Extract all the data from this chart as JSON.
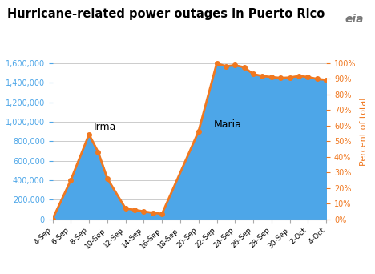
{
  "title": "Hurricane-related power outages in Puerto Rico",
  "ylabel_right": "Percent of total",
  "fill_color": "#4da6e8",
  "line_color": "#f07820",
  "title_color": "#000000",
  "left_label_color": "#4da6e8",
  "right_label_color": "#f07820",
  "background_color": "#ffffff",
  "x_labels": [
    "4-Sep",
    "6-Sep",
    "8-Sep",
    "10-Sep",
    "12-Sep",
    "14-Sep",
    "16-Sep",
    "18-Sep",
    "20-Sep",
    "22-Sep",
    "24-Sep",
    "26-Sep",
    "28-Sep",
    "30-Sep",
    "2-Oct",
    "4-Oct"
  ],
  "x_tick_positions": [
    0,
    2,
    4,
    6,
    8,
    10,
    12,
    14,
    16,
    18,
    20,
    22,
    24,
    26,
    28,
    30
  ],
  "customers": [
    0,
    400000,
    870000,
    690000,
    420000,
    110000,
    95000,
    80000,
    65000,
    55000,
    900000,
    1600000,
    1570000,
    1580000,
    1560000,
    1490000,
    1470000,
    1460000,
    1450000,
    1455000,
    1470000,
    1460000,
    1440000,
    1430000
  ],
  "percent": [
    0,
    25,
    54,
    43,
    26,
    7,
    6,
    5,
    4,
    3,
    56,
    100,
    98,
    99,
    97,
    93,
    92,
    91,
    91,
    91,
    92,
    91,
    90,
    89
  ],
  "x_data": [
    0,
    2,
    4,
    5,
    6,
    8,
    9,
    10,
    11,
    12,
    16,
    18,
    19,
    20,
    21,
    22,
    23,
    24,
    25,
    26,
    27,
    28,
    29,
    30
  ],
  "ylim_left": [
    0,
    1800000
  ],
  "ylim_right": [
    0,
    112.5
  ],
  "xlim": [
    0,
    30
  ],
  "irma_x": 4,
  "irma_y": 870000,
  "irma_label": "Irma",
  "maria_x": 18,
  "maria_y": 900000,
  "maria_label": "Maria",
  "grid_color": "#cccccc",
  "marker_size": 4,
  "line_width": 2.0,
  "yticks_left": [
    0,
    200000,
    400000,
    600000,
    800000,
    1000000,
    1200000,
    1400000,
    1600000
  ],
  "yticks_right": [
    0,
    10,
    20,
    30,
    40,
    50,
    60,
    70,
    80,
    90,
    100
  ]
}
